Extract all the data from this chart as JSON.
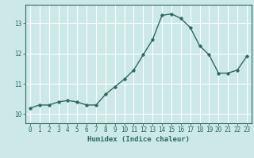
{
  "x": [
    0,
    1,
    2,
    3,
    4,
    5,
    6,
    7,
    8,
    9,
    10,
    11,
    12,
    13,
    14,
    15,
    16,
    17,
    18,
    19,
    20,
    21,
    22,
    23
  ],
  "y": [
    10.2,
    10.3,
    10.3,
    10.4,
    10.45,
    10.4,
    10.3,
    10.3,
    10.65,
    10.9,
    11.15,
    11.45,
    11.95,
    12.45,
    13.25,
    13.3,
    13.15,
    12.85,
    12.25,
    11.95,
    11.35,
    11.35,
    11.45,
    11.9
  ],
  "xlabel": "Humidex (Indice chaleur)",
  "xlim": [
    -0.5,
    23.5
  ],
  "ylim": [
    9.7,
    13.6
  ],
  "yticks": [
    10,
    11,
    12,
    13
  ],
  "xticks": [
    0,
    1,
    2,
    3,
    4,
    5,
    6,
    7,
    8,
    9,
    10,
    11,
    12,
    13,
    14,
    15,
    16,
    17,
    18,
    19,
    20,
    21,
    22,
    23
  ],
  "line_color": "#2e6b5e",
  "marker": "D",
  "marker_size": 1.8,
  "bg_color": "#cce8e8",
  "grid_color": "#ffffff",
  "axis_color": "#2e6b5e",
  "tick_color": "#2e6b5e",
  "label_color": "#2e6b5e",
  "xlabel_fontsize": 6.5,
  "tick_fontsize": 5.5,
  "line_width": 1.0
}
